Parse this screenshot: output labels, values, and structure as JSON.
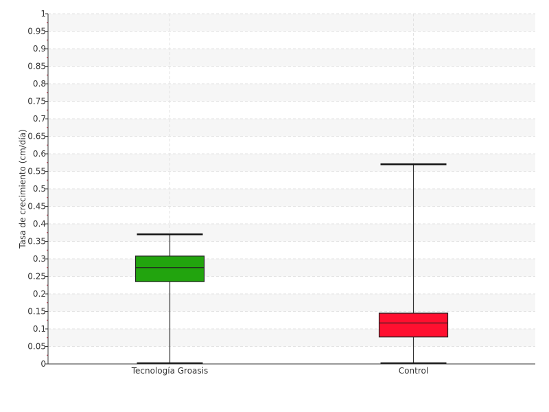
{
  "chart_data": {
    "type": "boxplot",
    "ylabel": "Tasa de crecimiento (cm/día)",
    "ylim": [
      0,
      1
    ],
    "ytick_step": 0.05,
    "yticks": [
      "0",
      "0.05",
      "0.1",
      "0.15",
      "0.2",
      "0.25",
      "0.3",
      "0.35",
      "0.4",
      "0.45",
      "0.5",
      "0.55",
      "0.6",
      "0.65",
      "0.7",
      "0.75",
      "0.8",
      "0.85",
      "0.9",
      "0.95",
      "1"
    ],
    "grid": true,
    "categories": [
      "Tecnología Groasis",
      "Control"
    ],
    "boxes": [
      {
        "name": "Tecnología Groasis",
        "min": 0.0,
        "q1": 0.235,
        "median": 0.275,
        "q3": 0.308,
        "max": 0.37,
        "color": "#22a40e"
      },
      {
        "name": "Control",
        "min": 0.0,
        "q1": 0.077,
        "median": 0.117,
        "q3": 0.145,
        "max": 0.57,
        "color": "#ff1030"
      }
    ]
  }
}
